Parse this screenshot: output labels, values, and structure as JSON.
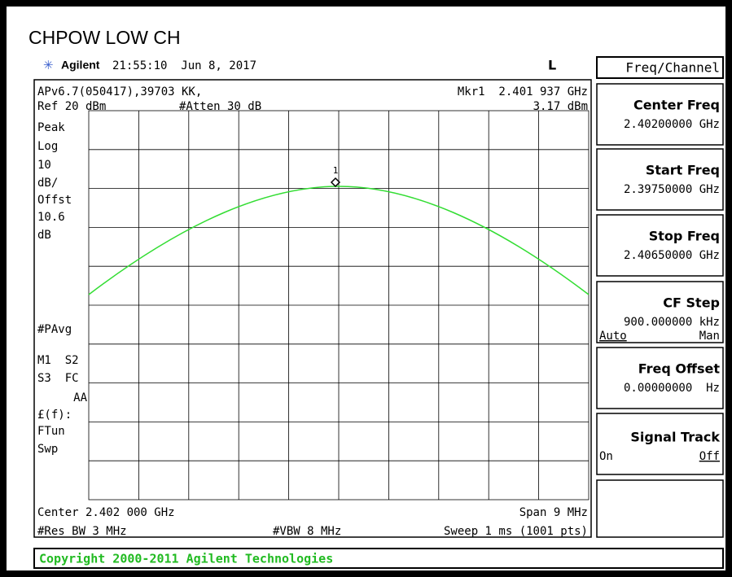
{
  "title": "CHPOW LOW CH",
  "header": {
    "brand": "Agilent",
    "time": "21:55:10  Jun 8, 2017",
    "indicator": "L"
  },
  "screen": {
    "info_line": "APv6.7(050417),39703 KK,",
    "marker_label": "Mkr1  2.401 937 GHz",
    "ref": "Ref 20 dBm",
    "atten": "#Atten 30 dB",
    "marker_value": "3.17 dBm",
    "left_labels": [
      "Peak",
      "Log",
      "10",
      "dB/",
      "Offst",
      "10.6",
      "dB",
      "#PAvg",
      "M1  S2",
      "S3  FC",
      "AA",
      "£(f):",
      "FTun",
      "Swp"
    ],
    "marker_number": "1",
    "center": "Center 2.402 000 GHz",
    "span": "Span 9 MHz",
    "rbw": "#Res BW 3 MHz",
    "vbw": "#VBW 8 MHz",
    "sweep": "Sweep 1 ms (1001 pts)"
  },
  "menu": {
    "title": "Freq/Channel",
    "keys": [
      {
        "label": "Center Freq",
        "value": "2.40200000 GHz"
      },
      {
        "label": "Start Freq",
        "value": "2.39750000 GHz"
      },
      {
        "label": "Stop Freq",
        "value": "2.40650000 GHz"
      },
      {
        "label": "CF Step",
        "value": "900.000000 kHz",
        "options": [
          "Auto",
          "Man"
        ]
      },
      {
        "label": "Freq Offset",
        "value": "0.00000000  Hz"
      },
      {
        "label": "Signal Track",
        "options": [
          "On",
          "Off"
        ]
      }
    ]
  },
  "footer": "Copyright 2000-2011 Agilent Technologies"
}
